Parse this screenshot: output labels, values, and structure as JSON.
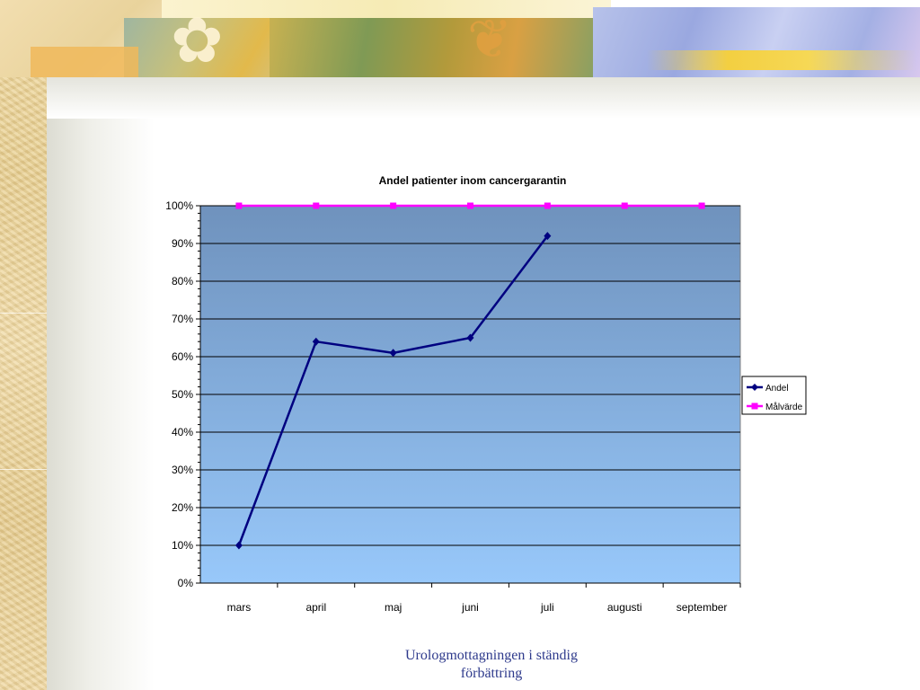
{
  "slide": {
    "footer_line1": "Urologmottagningen i ständig",
    "footer_line2": "förbättring"
  },
  "colors": {
    "andel": "#000080",
    "malvarde": "#ff00ff",
    "plot_top": "#6f92bd",
    "plot_bottom": "#98c8fa"
  },
  "chart_data": {
    "type": "line",
    "title": "Andel patienter inom cancergarantin",
    "categories": [
      "mars",
      "april",
      "maj",
      "juni",
      "juli",
      "augusti",
      "september"
    ],
    "series": [
      {
        "name": "Andel",
        "values": [
          0.1,
          0.64,
          0.61,
          0.65,
          0.92,
          null,
          null
        ],
        "marker": "diamond",
        "color": "#000080"
      },
      {
        "name": "Målvärde",
        "values": [
          1.0,
          1.0,
          1.0,
          1.0,
          1.0,
          1.0,
          1.0
        ],
        "marker": "square",
        "color": "#ff00ff"
      }
    ],
    "y_ticks": [
      "0%",
      "10%",
      "20%",
      "30%",
      "40%",
      "50%",
      "60%",
      "70%",
      "80%",
      "90%",
      "100%"
    ],
    "ylim": [
      0,
      1
    ],
    "grid": true,
    "legend_position": "right"
  }
}
